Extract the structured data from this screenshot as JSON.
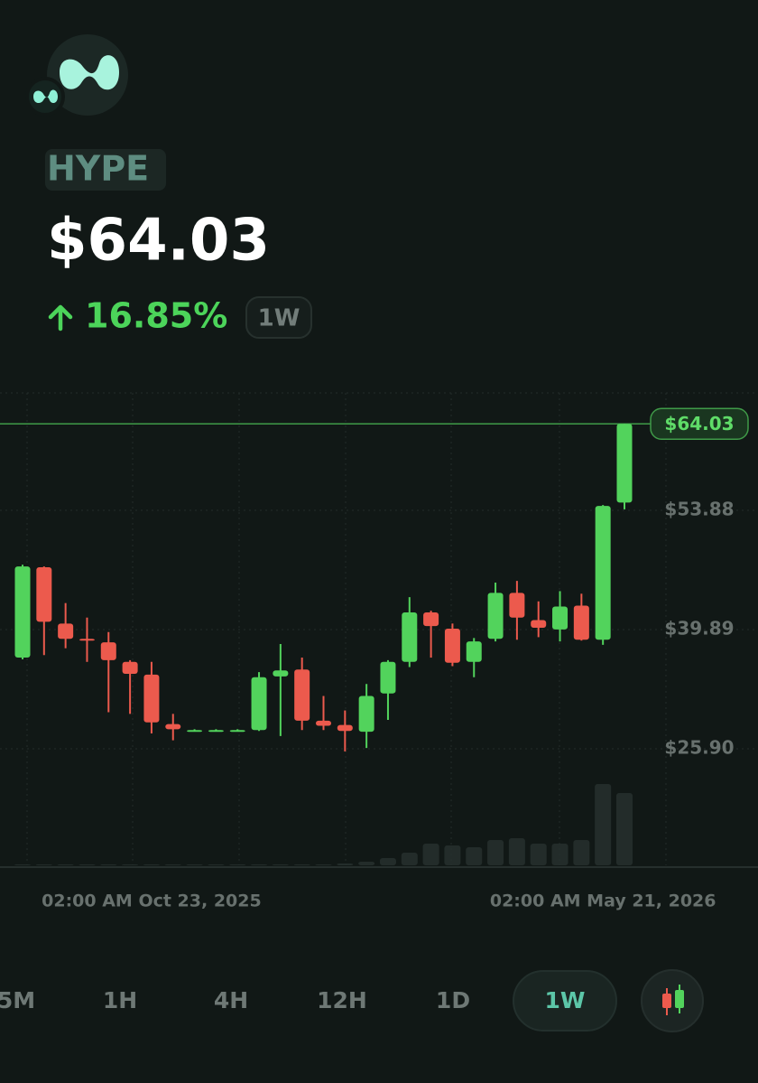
{
  "header": {
    "symbol": "HYPE",
    "price": "$64.03",
    "change": "16.85%",
    "period": "1W"
  },
  "chart_data": {
    "type": "candlestick",
    "categories": [
      null,
      null,
      null,
      null,
      null,
      null,
      "02:00 AM Oct 23, 2025",
      null,
      null,
      null,
      null,
      null,
      null,
      null,
      null,
      null,
      null,
      null,
      null,
      null,
      null,
      null,
      null,
      null,
      null,
      null,
      null,
      "02:00 AM May 21, 2026",
      null
    ],
    "open": [
      36.6,
      47.2,
      40.6,
      38.8,
      38.4,
      36.1,
      34.6,
      28.8,
      28.1,
      28.1,
      28.1,
      28.1,
      34.4,
      35.2,
      29.2,
      28.7,
      27.9,
      32.4,
      36.1,
      41.9,
      40.0,
      36.1,
      38.8,
      44.2,
      41.0,
      39.9,
      42.7,
      38.7,
      54.8
    ],
    "high": [
      47.5,
      47.3,
      43.0,
      41.3,
      39.6,
      36.3,
      36.1,
      30.0,
      28.2,
      28.2,
      28.2,
      34.9,
      38.2,
      36.6,
      32.1,
      30.4,
      33.5,
      36.3,
      43.7,
      42.1,
      40.6,
      38.9,
      45.4,
      45.6,
      43.2,
      44.4,
      44.1,
      54.5,
      64.03
    ],
    "low": [
      36.4,
      36.9,
      37.7,
      36.1,
      30.2,
      30.0,
      27.7,
      26.9,
      28.0,
      28.0,
      28.0,
      28.0,
      27.4,
      28.1,
      28.1,
      25.6,
      26.0,
      29.3,
      35.5,
      36.6,
      35.6,
      34.3,
      38.5,
      38.7,
      39.0,
      38.5,
      38.6,
      38.1,
      54.0
    ],
    "close": [
      47.3,
      40.8,
      38.8,
      38.7,
      36.3,
      34.7,
      29.0,
      28.2,
      28.1,
      28.1,
      28.1,
      34.3,
      35.1,
      29.2,
      28.6,
      28.0,
      32.1,
      36.1,
      41.9,
      40.3,
      36.0,
      38.5,
      44.2,
      41.3,
      40.1,
      42.6,
      38.7,
      54.4,
      64.03
    ],
    "volume": [
      1,
      1,
      1,
      1,
      1,
      1,
      1,
      1,
      1,
      1,
      1,
      1,
      1,
      1,
      1,
      2,
      4,
      8,
      14,
      24,
      22,
      20,
      28,
      30,
      24,
      24,
      28,
      90,
      80
    ],
    "up_color": "#52d35c",
    "down_color": "#ec5a4d",
    "ylim": [
      12.23,
      67.66
    ],
    "yticks": [
      {
        "value": 25.9,
        "label": "$25.90"
      },
      {
        "value": 39.89,
        "label": "$39.89"
      },
      {
        "value": 53.88,
        "label": "$53.88"
      }
    ],
    "current_price": {
      "value": 64.03,
      "label": "$64.03"
    },
    "grid": true
  },
  "timeframes": [
    "5M",
    "1H",
    "4H",
    "12H",
    "1D",
    "1W"
  ],
  "selected_timeframe": 5
}
